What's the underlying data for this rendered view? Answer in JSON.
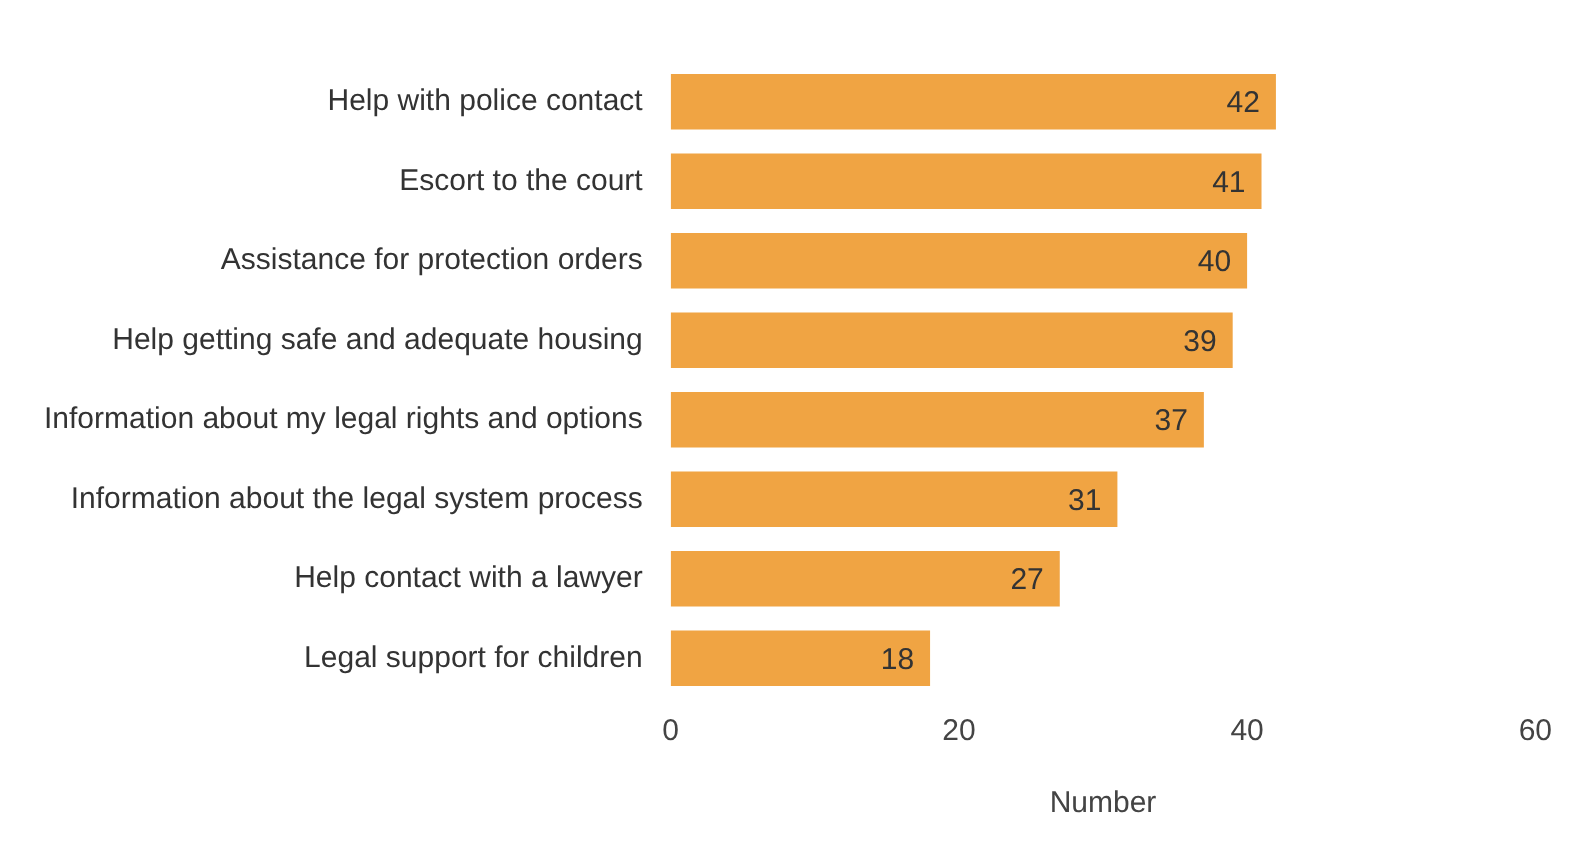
{
  "chart_data": {
    "type": "bar",
    "orientation": "horizontal",
    "categories": [
      "Help with police contact",
      "Escort to the court",
      "Assistance for protection orders",
      "Help getting safe and adequate housing",
      "Information about my legal rights and options",
      "Information about the legal system process",
      "Help contact with a lawyer",
      "Legal support for children"
    ],
    "values": [
      42,
      41,
      40,
      39,
      37,
      31,
      27,
      18
    ],
    "color": "#f0a443",
    "xlim": [
      0,
      60
    ],
    "xticks": [
      0,
      20,
      40,
      60
    ],
    "xlabel": "Number",
    "data_labels": true,
    "grid": false,
    "legend": false
  }
}
